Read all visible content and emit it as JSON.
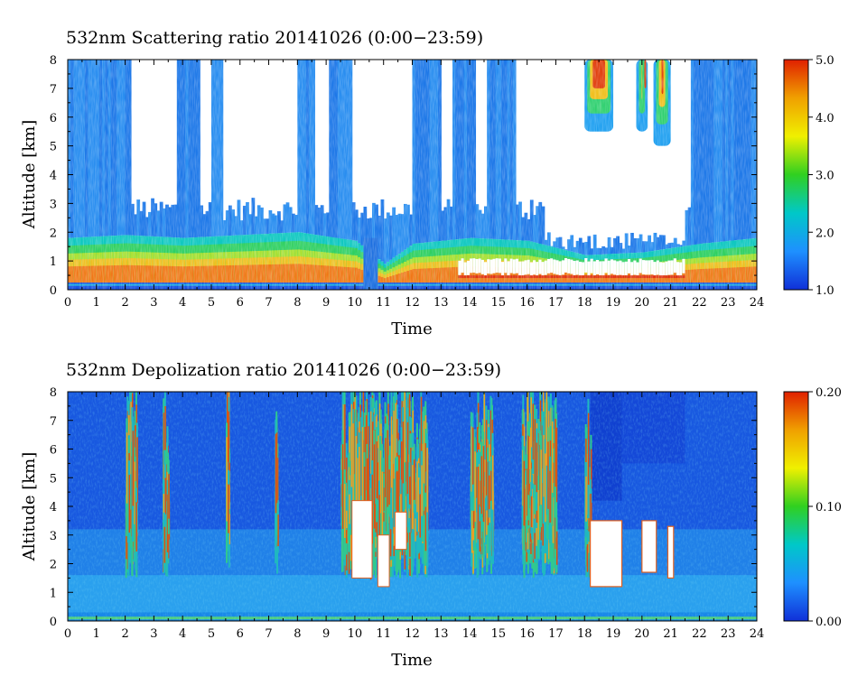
{
  "chart_data": [
    {
      "type": "heatmap",
      "title": "532nm Scattering ratio  20141026 (0:00−23:59)",
      "xlabel": "Time",
      "ylabel": "Altitude [km]",
      "xlim": [
        0,
        24
      ],
      "ylim": [
        0,
        8
      ],
      "x_ticks": [
        "0",
        "1",
        "2",
        "3",
        "4",
        "5",
        "6",
        "7",
        "8",
        "9",
        "10",
        "11",
        "12",
        "13",
        "14",
        "15",
        "16",
        "17",
        "18",
        "19",
        "20",
        "21",
        "22",
        "23",
        "24"
      ],
      "y_ticks": [
        "0",
        "1",
        "2",
        "3",
        "4",
        "5",
        "6",
        "7",
        "8"
      ],
      "colorbar": {
        "range": [
          1.0,
          5.0
        ],
        "ticks": [
          "1.0",
          "2.0",
          "3.0",
          "4.0",
          "5.0"
        ],
        "colors": [
          "#1030d8",
          "#1e90ff",
          "#00c8c8",
          "#30d020",
          "#f0f000",
          "#f0a000",
          "#e02000"
        ]
      },
      "features": {
        "boundary_layer_top_km": [
          {
            "t": 0,
            "h": 1.8
          },
          {
            "t": 2,
            "h": 1.9
          },
          {
            "t": 4,
            "h": 1.8
          },
          {
            "t": 6,
            "h": 1.9
          },
          {
            "t": 8,
            "h": 2.0
          },
          {
            "t": 10,
            "h": 1.7
          },
          {
            "t": 11,
            "h": 0.9
          },
          {
            "t": 12,
            "h": 1.6
          },
          {
            "t": 14,
            "h": 1.8
          },
          {
            "t": 16,
            "h": 1.7
          },
          {
            "t": 18,
            "h": 1.2
          },
          {
            "t": 20,
            "h": 1.3
          },
          {
            "t": 22,
            "h": 1.6
          },
          {
            "t": 24,
            "h": 1.8
          }
        ],
        "high_clouds": [
          {
            "t0": 18.0,
            "t1": 19.0,
            "h0": 5.5,
            "h1": 8.0
          },
          {
            "t0": 19.8,
            "t1": 20.2,
            "h0": 5.5,
            "h1": 8.0
          },
          {
            "t0": 20.4,
            "t1": 21.0,
            "h0": 5.0,
            "h1": 8.0
          }
        ]
      }
    },
    {
      "type": "heatmap",
      "title": "532nm Depolization ratio  20141026 (0:00−23:59)",
      "xlabel": "Time",
      "ylabel": "Altitude [km]",
      "xlim": [
        0,
        24
      ],
      "ylim": [
        0,
        8
      ],
      "x_ticks": [
        "0",
        "1",
        "2",
        "3",
        "4",
        "5",
        "6",
        "7",
        "8",
        "9",
        "10",
        "11",
        "12",
        "13",
        "14",
        "15",
        "16",
        "17",
        "18",
        "19",
        "20",
        "21",
        "22",
        "23",
        "24"
      ],
      "y_ticks": [
        "0",
        "1",
        "2",
        "3",
        "4",
        "5",
        "6",
        "7",
        "8"
      ],
      "colorbar": {
        "range": [
          0.0,
          0.2
        ],
        "ticks": [
          "0.00",
          "0.10",
          "0.20"
        ],
        "colors": [
          "#1030d8",
          "#1e90ff",
          "#00c8c8",
          "#30d020",
          "#f0f000",
          "#f0a000",
          "#e02000"
        ]
      },
      "features": {
        "high_depol_columns": [
          {
            "t0": 2.0,
            "t1": 2.4
          },
          {
            "t0": 3.3,
            "t1": 3.5
          },
          {
            "t0": 5.5,
            "t1": 5.6
          },
          {
            "t0": 7.2,
            "t1": 7.3
          },
          {
            "t0": 9.5,
            "t1": 12.5
          },
          {
            "t0": 14.0,
            "t1": 14.8
          },
          {
            "t0": 15.8,
            "t1": 17.0
          },
          {
            "t0": 18.0,
            "t1": 18.2
          }
        ],
        "masked_regions": [
          {
            "t0": 18.2,
            "t1": 19.3,
            "h0": 1.2,
            "h1": 3.5
          },
          {
            "t0": 20.0,
            "t1": 20.5,
            "h0": 1.7,
            "h1": 3.5
          },
          {
            "t0": 20.9,
            "t1": 21.1,
            "h0": 1.5,
            "h1": 3.3
          }
        ]
      }
    }
  ]
}
